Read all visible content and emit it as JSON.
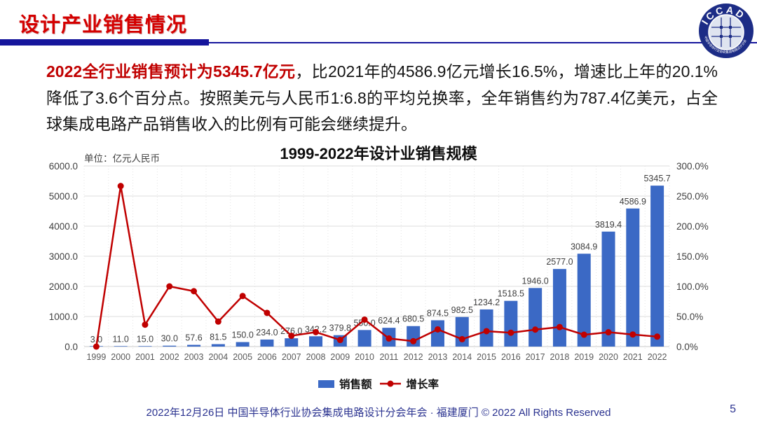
{
  "colors": {
    "title_red": "#D40000",
    "highlight_red": "#C00000",
    "bar_blue": "#3B69C5",
    "line_red": "#C00000",
    "rule_navy": "#15159C",
    "footer_navy": "#2B3390"
  },
  "header": {
    "title": "设计产业销售情况"
  },
  "logo": {
    "text": "ICCAD",
    "ring_text": "中国半导体行业协会集成电路设计分会"
  },
  "body_text": {
    "highlight": "2022全行业销售预计为5345.7亿元",
    "rest": "，比2021年的4586.9亿元增长16.5%，增速比上年的20.1%降低了3.6个百分点。按照美元与人民币1:6.8的平均兑换率，全年销售约为787.4亿美元，占全球集成电路产品销售收入的比例有可能会继续提升。"
  },
  "chart_data": {
    "type": "combo-bar-line",
    "title": "1999-2022年设计业销售规模",
    "unit_label": "单位：亿元人民币",
    "grid": true,
    "legend_position": "bottom",
    "categories": [
      "1999",
      "2000",
      "2001",
      "2002",
      "2003",
      "2004",
      "2005",
      "2006",
      "2007",
      "2008",
      "2009",
      "2010",
      "2011",
      "2012",
      "2013",
      "2014",
      "2015",
      "2016",
      "2017",
      "2018",
      "2019",
      "2020",
      "2021",
      "2022"
    ],
    "series": [
      {
        "name": "销售额",
        "type": "bar",
        "axis": "left",
        "color": "#3B69C5",
        "values": [
          3.0,
          11.0,
          15.0,
          30.0,
          57.6,
          81.5,
          150.0,
          234.0,
          276.0,
          342.2,
          379.8,
          550.0,
          624.4,
          680.5,
          874.5,
          982.5,
          1234.2,
          1518.5,
          1946.0,
          2577.0,
          3084.9,
          3819.4,
          4586.9,
          5345.7
        ],
        "labels": [
          "3.0",
          "11.0",
          "15.0",
          "30.0",
          "57.6",
          "81.5",
          "150.0",
          "234.0",
          "276.0",
          "342.2",
          "379.8",
          "550.0",
          "624.4",
          "680.5",
          "874.5",
          "982.5",
          "1234.2",
          "1518.5",
          "1946.0",
          "2577.0",
          "3084.9",
          "3819.4",
          "4586.9",
          "5345.7"
        ]
      },
      {
        "name": "增长率",
        "type": "line",
        "axis": "right",
        "color": "#C00000",
        "values": [
          0.0,
          266.7,
          36.4,
          100.0,
          92.0,
          41.5,
          84.0,
          56.0,
          17.9,
          24.0,
          11.0,
          44.8,
          13.5,
          9.0,
          28.5,
          12.3,
          25.6,
          23.0,
          28.2,
          32.4,
          19.7,
          23.8,
          20.1,
          16.5
        ]
      }
    ],
    "left_axis": {
      "min": 0,
      "max": 6000,
      "ticks": [
        "0.0",
        "1000.0",
        "2000.0",
        "3000.0",
        "4000.0",
        "5000.0",
        "6000.0"
      ]
    },
    "right_axis": {
      "min": 0,
      "max": 300,
      "ticks": [
        "0.0%",
        "50.0%",
        "100.0%",
        "150.0%",
        "200.0%",
        "250.0%",
        "300.0%"
      ]
    }
  },
  "footer": {
    "text": "2022年12月26日 中国半导体行业协会集成电路设计分会年会 · 福建厦门 © 2022 All Rights Reserved",
    "page_number": "5"
  }
}
